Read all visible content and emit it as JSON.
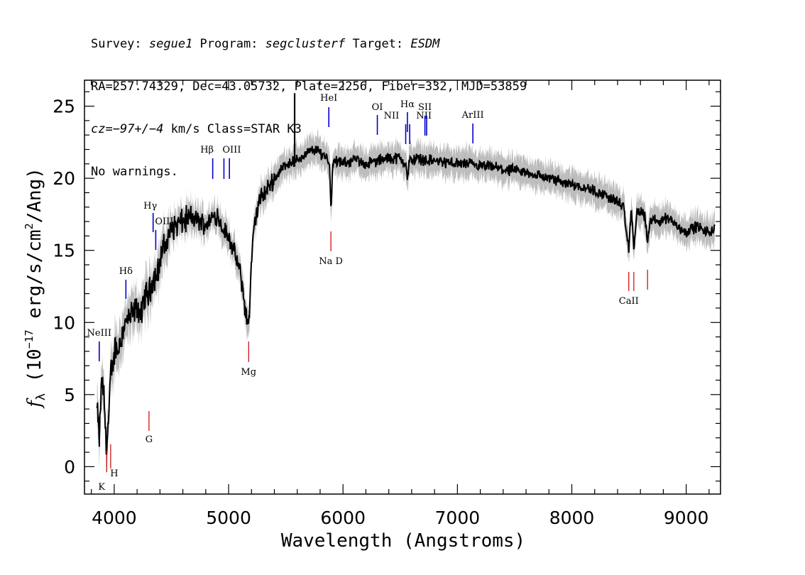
{
  "header": {
    "line1": {
      "survey_label": "Survey: ",
      "survey": "segue1",
      "program_label": " Program: ",
      "program": "segclusterf",
      "target_label": " Target: ",
      "target": "ESDM"
    },
    "line2": "RA=257.74329, Dec=43.05732, Plate=2256, Fiber=332, MJD=53859",
    "line3": {
      "cz_label": "cz=",
      "cz_value": "−97+/−4",
      "rest": " km/s Class=STAR K3"
    },
    "line4": "No warnings."
  },
  "chart_data": {
    "type": "line",
    "xlabel": "Wavelength (Angstroms)",
    "ylabel": {
      "prefix": "f",
      "subscript": "λ",
      "text1": " (10",
      "exp1": "−17",
      "text2": " erg/s/cm",
      "exp2": "2",
      "text3": "/Ang)"
    },
    "xlim": [
      3740,
      9300
    ],
    "ylim": [
      -1.9,
      26.8
    ],
    "xticks": [
      4000,
      5000,
      6000,
      7000,
      8000,
      9000
    ],
    "yticks": [
      0,
      5,
      10,
      15,
      20,
      25
    ],
    "colors": {
      "flux": "#000000",
      "error_band": "#bdbdbd",
      "emission_lines": "#0000cc",
      "absorption_lines": "#cc0000"
    },
    "series": [
      {
        "x": [
          3850,
          3870,
          3890,
          3910,
          3930,
          3950,
          3970,
          3990,
          4010,
          4030,
          4060,
          4100,
          4150,
          4200,
          4240,
          4270,
          4300,
          4340,
          4380,
          4420,
          4460,
          4500,
          4550,
          4600,
          4650,
          4700,
          4750,
          4800,
          4850,
          4900,
          4950,
          5000,
          5050,
          5100,
          5130,
          5150,
          5170,
          5185,
          5200,
          5230,
          5270,
          5320,
          5400,
          5500,
          5580,
          5650,
          5700,
          5750,
          5800,
          5850,
          5880,
          5895,
          5910,
          5950,
          6000,
          6100,
          6200,
          6300,
          6400,
          6500,
          6550,
          6563,
          6580,
          6650,
          6700,
          6800,
          6900,
          7000,
          7100,
          7200,
          7300,
          7400,
          7500,
          7600,
          7700,
          7800,
          7900,
          8000,
          8100,
          8200,
          8300,
          8400,
          8450,
          8498,
          8520,
          8542,
          8570,
          8620,
          8640,
          8662,
          8690,
          8750,
          8800,
          8850,
          8900,
          8950,
          9000,
          9050,
          9100,
          9150,
          9200,
          9250
        ],
        "y": [
          4.0,
          2.0,
          6.0,
          5.0,
          1.5,
          3.0,
          6.5,
          7.0,
          8.5,
          8.0,
          9.0,
          10.0,
          10.5,
          11.0,
          10.5,
          12.0,
          12.0,
          13.0,
          13.5,
          15.0,
          15.5,
          16.5,
          16.8,
          17.0,
          17.2,
          17.2,
          17.0,
          16.8,
          17.2,
          17.5,
          16.5,
          16.0,
          14.8,
          13.5,
          12.0,
          10.5,
          9.8,
          11.0,
          14.5,
          17.0,
          18.5,
          19.0,
          20.0,
          21.0,
          21.2,
          21.5,
          21.8,
          22.0,
          21.8,
          21.5,
          21.2,
          18.0,
          21.0,
          21.2,
          21.0,
          21.3,
          21.0,
          21.2,
          21.4,
          21.4,
          21.0,
          19.8,
          21.2,
          21.4,
          21.3,
          21.2,
          21.1,
          21.0,
          21.0,
          20.8,
          20.8,
          20.6,
          20.5,
          20.4,
          20.2,
          20.0,
          19.8,
          19.6,
          19.4,
          19.1,
          18.8,
          18.4,
          18.0,
          15.0,
          18.0,
          15.0,
          17.8,
          17.5,
          17.3,
          15.5,
          17.2,
          17.0,
          17.2,
          17.3,
          16.8,
          16.5,
          16.3,
          16.5,
          16.7,
          16.3,
          16.3,
          16.5
        ]
      }
    ],
    "spike": {
      "x": 5577,
      "y_top": 25.9,
      "y_bottom": 20.8
    },
    "emission_lines": [
      {
        "label": "NeIII",
        "x": 3869
      },
      {
        "label": "Hδ",
        "x": 4102
      },
      {
        "label": "Hγ",
        "x": 4340
      },
      {
        "label": "OIII",
        "x": 4363
      },
      {
        "label": "Hβ",
        "x": 4861
      },
      {
        "label": "OIII",
        "x": 4959
      },
      {
        "label": "",
        "x": 5007
      },
      {
        "label": "HeI",
        "x": 5876
      },
      {
        "label": "OI",
        "x": 6300
      },
      {
        "label": "NII",
        "x": 6548
      },
      {
        "label": "Hα",
        "x": 6563
      },
      {
        "label": "NII",
        "x": 6583
      },
      {
        "label": "SII",
        "x": 6716
      },
      {
        "label": "",
        "x": 6731
      },
      {
        "label": "ArIII",
        "x": 7135
      }
    ],
    "absorption_lines": [
      {
        "label": "K",
        "x": 3934
      },
      {
        "label": "H",
        "x": 3969
      },
      {
        "label": "G",
        "x": 4304
      },
      {
        "label": "Mg",
        "x": 5175
      },
      {
        "label": "Na  D",
        "x": 5894
      },
      {
        "label": "CaII",
        "x": 8498
      },
      {
        "label": "",
        "x": 8542
      },
      {
        "label": "",
        "x": 8662
      }
    ]
  }
}
